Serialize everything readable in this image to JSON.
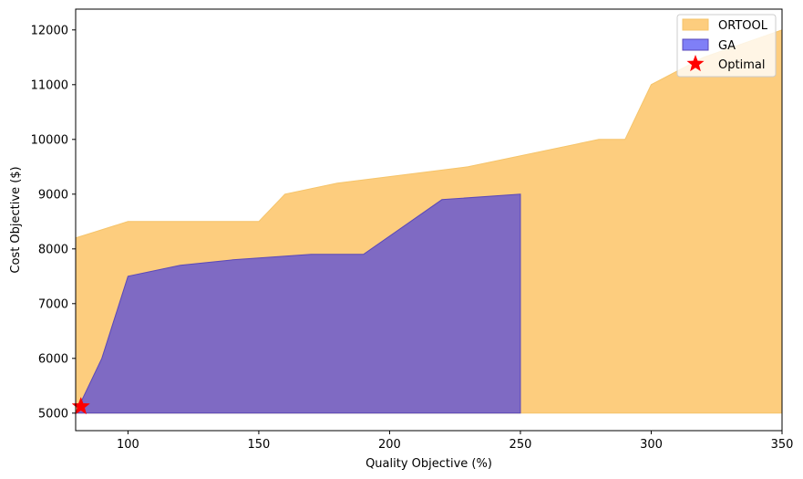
{
  "chart_data": {
    "type": "area",
    "title": "",
    "xlabel": "Quality Objective (%)",
    "ylabel": "Cost Objective ($)",
    "xlim": [
      80,
      350
    ],
    "ylim": [
      4680,
      12380
    ],
    "xticks": [
      100,
      150,
      200,
      250,
      300,
      350
    ],
    "yticks": [
      5000,
      6000,
      7000,
      8000,
      9000,
      10000,
      11000,
      12000
    ],
    "grid": false,
    "legend_position": "top-right",
    "series": [
      {
        "name": "ORTOOL",
        "kind": "fill_between",
        "color": "#fdcd7e",
        "edge_color": "#f5c46a",
        "baseline": 5000,
        "x": [
          80,
          100,
          150,
          160,
          180,
          230,
          280,
          290,
          300,
          320,
          350
        ],
        "y": [
          8200,
          8500,
          8500,
          9000,
          9200,
          9500,
          10000,
          10000,
          11000,
          11500,
          12000
        ]
      },
      {
        "name": "GA",
        "kind": "fill_between",
        "color": "#7f6ac3",
        "edge_color": "#5a48b8",
        "legend_color": "#7f7ff7",
        "baseline": 5000,
        "x": [
          80,
          90,
          100,
          120,
          140,
          170,
          190,
          220,
          250
        ],
        "y": [
          5000,
          6000,
          7500,
          7700,
          7800,
          7900,
          7900,
          8900,
          9000
        ]
      },
      {
        "name": "Optimal",
        "kind": "marker",
        "marker": "star",
        "color": "#ff0000",
        "x": [
          82
        ],
        "y": [
          5120
        ]
      }
    ]
  }
}
